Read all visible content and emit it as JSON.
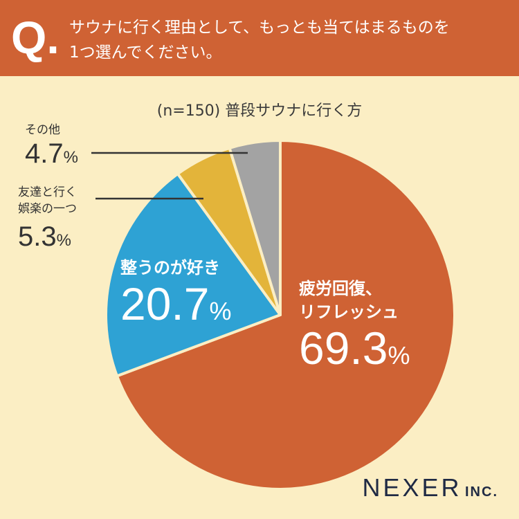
{
  "header": {
    "q_mark": "Q.",
    "question_line1": "サウナに行く理由として、もっとも当てはまるものを",
    "question_line2": "1つ選んでください。"
  },
  "chart_data": {
    "type": "pie",
    "title": "(n=150) 普段サウナに行く方",
    "start_angle_deg": 0,
    "direction": "clockwise",
    "slices": [
      {
        "name": "疲労回復、リフレッシュ",
        "name_lines": [
          "疲労回復、",
          "リフレッシュ"
        ],
        "value": 69.3,
        "value_text": "69.3",
        "unit": "%",
        "color": "#cf6234"
      },
      {
        "name": "整うのが好き",
        "name_lines": [
          "整うのが好き"
        ],
        "value": 20.7,
        "value_text": "20.7",
        "unit": "%",
        "color": "#2ea2d4"
      },
      {
        "name": "友達と行く娯楽の一つ",
        "name_lines": [
          "友達と行く",
          "娯楽の一つ"
        ],
        "value": 5.3,
        "value_text": "5.3",
        "unit": "%",
        "color": "#e3b43a"
      },
      {
        "name": "その他",
        "name_lines": [
          "その他"
        ],
        "value": 4.7,
        "value_text": "4.7",
        "unit": "%",
        "color": "#a3a3a3"
      }
    ]
  },
  "footer": {
    "logo_main": "NEXER",
    "logo_sub": "INC."
  }
}
